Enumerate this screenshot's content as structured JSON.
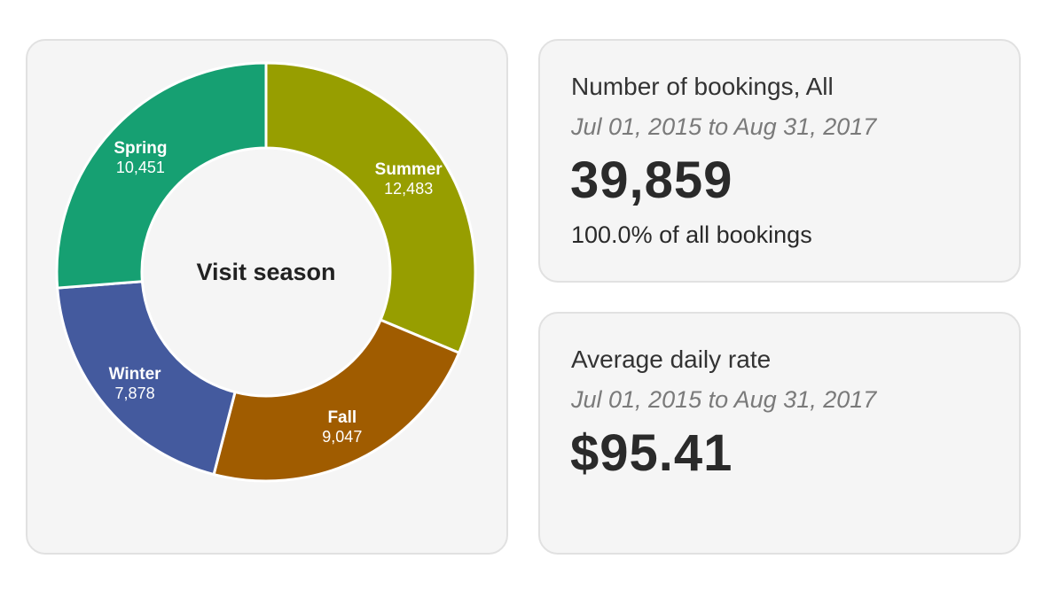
{
  "chart_data": {
    "type": "pie",
    "title": "Visit season",
    "categories": [
      "Summer",
      "Fall",
      "Winter",
      "Spring"
    ],
    "values": [
      12483,
      9047,
      7878,
      10451
    ],
    "value_labels": [
      "12,483",
      "9,047",
      "7,878",
      "10,451"
    ],
    "colors": [
      "#979e00",
      "#a05c00",
      "#445a9e",
      "#16a072"
    ],
    "donut": true,
    "legend": "none"
  },
  "bookings": {
    "title": "Number of bookings, All",
    "range": "Jul 01, 2015 to Aug 31, 2017",
    "value": "39,859",
    "share": "100.0% of all bookings"
  },
  "rate": {
    "title": "Average daily rate",
    "range": "Jul 01, 2015 to Aug 31, 2017",
    "value": "$95.41"
  }
}
